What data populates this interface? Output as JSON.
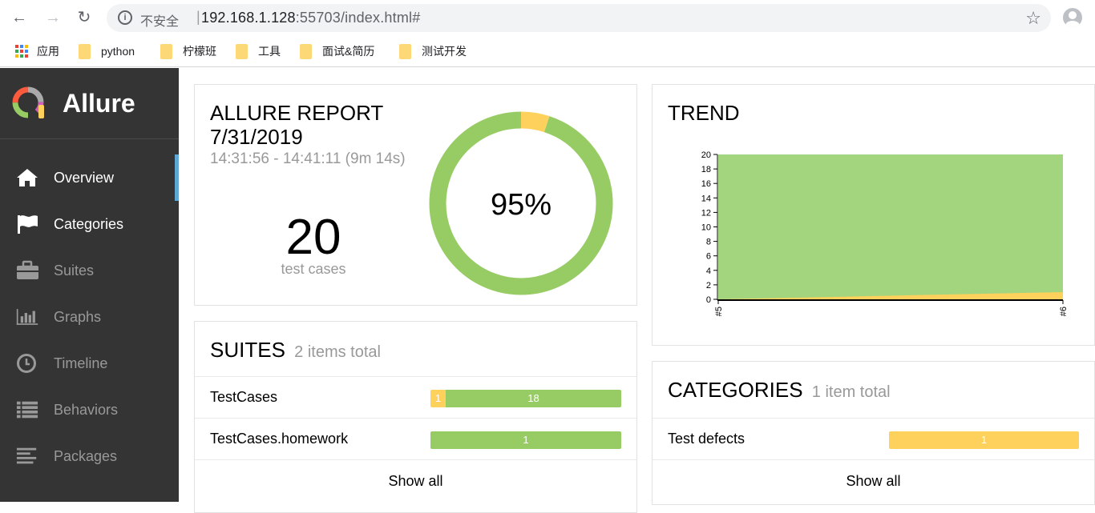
{
  "browser": {
    "insecure_label": "不安全",
    "url_host": "192.168.1.128",
    "url_port": ":55703",
    "url_path": "/index.html#",
    "bookmarks": [
      "应用",
      "python",
      "柠檬班",
      "工具",
      "面试&简历",
      "测试开发"
    ]
  },
  "sidebar": {
    "brand": "Allure",
    "items": [
      {
        "label": "Overview",
        "icon": "home-icon"
      },
      {
        "label": "Categories",
        "icon": "flag-icon"
      },
      {
        "label": "Suites",
        "icon": "briefcase-icon"
      },
      {
        "label": "Graphs",
        "icon": "bar-chart-icon"
      },
      {
        "label": "Timeline",
        "icon": "clock-icon"
      },
      {
        "label": "Behaviors",
        "icon": "list-icon"
      },
      {
        "label": "Packages",
        "icon": "align-left-icon"
      }
    ]
  },
  "report": {
    "title": "ALLURE REPORT",
    "date": "7/31/2019",
    "time_range": "14:31:56 - 14:41:11 (9m 14s)",
    "test_count": "20",
    "test_count_label": "test cases",
    "pass_rate_label": "95%",
    "passed_fraction": 0.95
  },
  "suites": {
    "title": "SUITES",
    "subtitle": "2 items total",
    "rows": [
      {
        "name": "TestCases",
        "broken": "1",
        "passed": "18"
      },
      {
        "name": "TestCases.homework",
        "broken": "",
        "passed": "1"
      }
    ],
    "show_all": "Show all"
  },
  "trend": {
    "title": "TREND"
  },
  "chart_data": {
    "type": "area",
    "title": "TREND",
    "x": [
      "#5",
      "#6"
    ],
    "series": [
      {
        "values": [
          20,
          20
        ],
        "color": "#a3d47e"
      },
      {
        "values": [
          0,
          1
        ],
        "color": "#fdd15c"
      }
    ],
    "ylim": [
      0,
      20
    ],
    "yticks": [
      0,
      2,
      4,
      6,
      8,
      10,
      12,
      14,
      16,
      18,
      20
    ]
  },
  "categories": {
    "title": "CATEGORIES",
    "subtitle": "1 item total",
    "rows": [
      {
        "name": "Test defects",
        "count": "1"
      }
    ],
    "show_all": "Show all"
  },
  "colors": {
    "passed": "#97cc64",
    "broken": "#fdd15c",
    "sidebar": "#343434",
    "active_marker": "#5ca7d6"
  }
}
